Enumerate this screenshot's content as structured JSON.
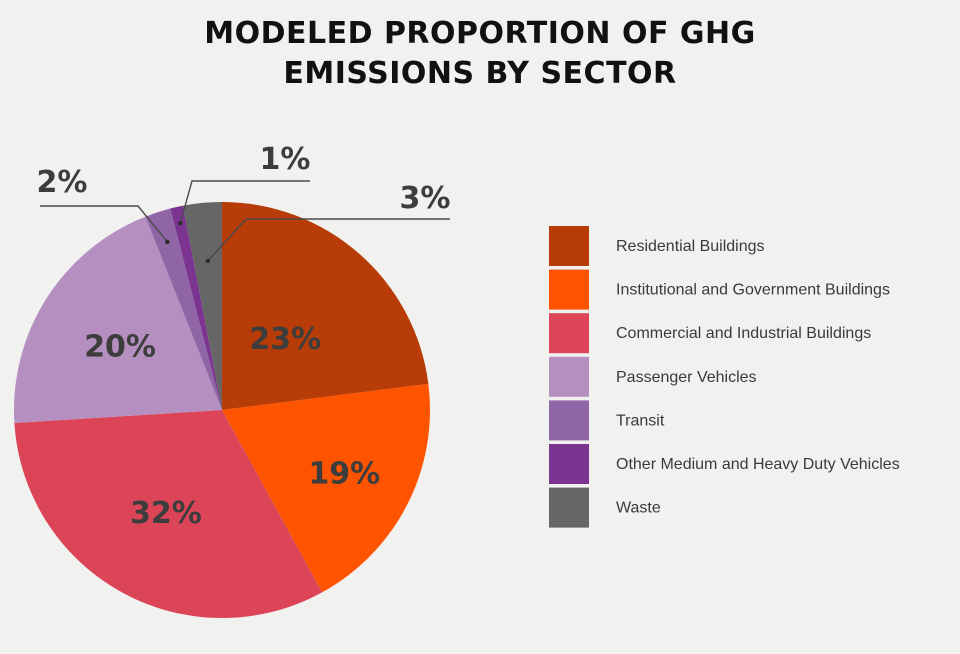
{
  "chart_data": {
    "type": "pie",
    "title": [
      "MODELED PROPORTION OF GHG",
      "EMISSIONS BY SECTOR"
    ],
    "slices": [
      {
        "name": "Residential Buildings",
        "value": 23,
        "label": "23%",
        "color": "#b83c08"
      },
      {
        "name": "Institutional and Government Buildings",
        "value": 19,
        "label": "19%",
        "color": "#fe5400"
      },
      {
        "name": "Commercial and Industrial Buildings",
        "value": 32,
        "label": "32%",
        "color": "#dc4458"
      },
      {
        "name": "Passenger Vehicles",
        "value": 20,
        "label": "20%",
        "color": "#b48fc0"
      },
      {
        "name": "Transit",
        "value": 2,
        "label": "2%",
        "color": "#9065a6"
      },
      {
        "name": "Other Medium and Heavy Duty Vehicles",
        "value": 1,
        "label": "1%",
        "color": "#7b3591"
      },
      {
        "name": "Waste",
        "value": 3,
        "label": "3%",
        "color": "#666666"
      }
    ],
    "start": "top",
    "direction": "clockwise",
    "legend_position": "right"
  }
}
